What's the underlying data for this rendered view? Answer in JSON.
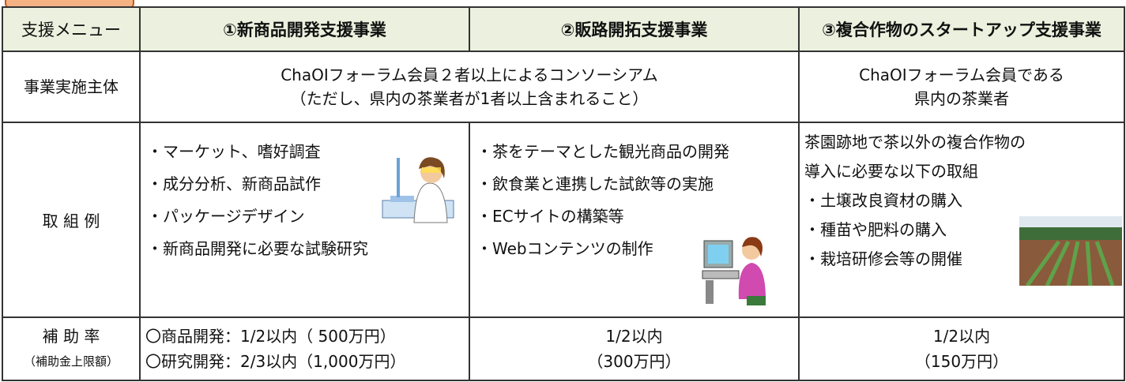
{
  "table": {
    "header": [
      "支援メニュー",
      "①新商品開発支援事業",
      "②販路開拓支援事業",
      "③複合作物のスタートアップ支援事業"
    ],
    "rows": [
      {
        "label": [
          "事業実施主体"
        ],
        "cells": [
          [
            "ChaOIフォーラム会員２者以上によるコンソーシアム",
            "（ただし、県内の茶業者が1者以上含まれること）"
          ],
          [
            "ChaOIフォーラム会員である",
            "県内の茶業者"
          ]
        ]
      },
      {
        "label": [
          "取 組 例"
        ],
        "cells": [
          [
            "・マーケット、嗜好調査",
            "・成分分析、新商品試作",
            "・パッケージデザイン",
            "・新商品開発に必要な試験研究"
          ],
          [
            "・茶をテーマとした観光商品の開発",
            "・飲食業と連携した試飲等の実施",
            "・ECサイトの構築等",
            "・Webコンテンツの制作"
          ],
          [
            "茶園跡地で茶以外の複合作物の",
            "導入に必要な以下の取組",
            "・土壌改良資材の購入",
            "・種苗や肥料の購入",
            "・栽培研修会等の開催"
          ]
        ]
      },
      {
        "label": [
          "補 助 率",
          "（補助金上限額）"
        ],
        "cells": [
          [
            "〇商品開発：1/2以内（ 500万円）",
            "〇研究開発：2/3以内（1,000万円）"
          ],
          [
            "1/2以内",
            "（300万円）"
          ],
          [
            "1/2以内",
            "（150万円）"
          ]
        ]
      }
    ]
  }
}
